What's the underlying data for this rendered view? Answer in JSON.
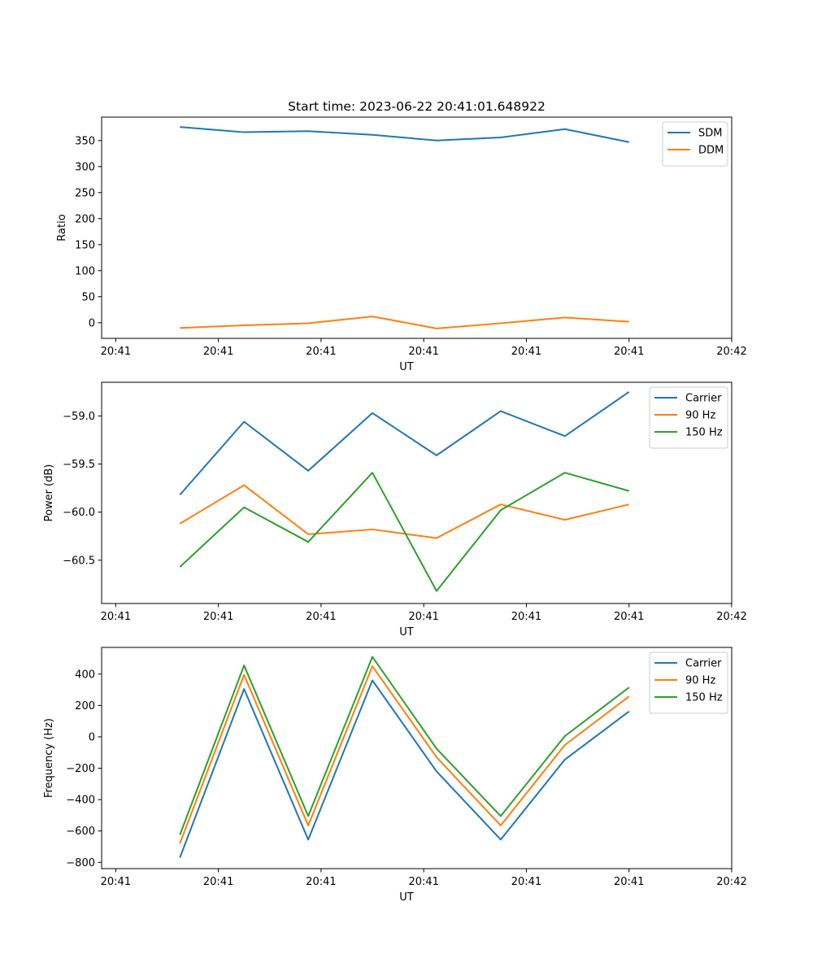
{
  "figure": {
    "title": "Start time: 2023-06-22 20:41:01.648922"
  },
  "colors": {
    "blue": "#1f77b4",
    "orange": "#ff7f0e",
    "green": "#2ca02c"
  },
  "chart_data": [
    {
      "type": "line",
      "title": "Start time: 2023-06-22 20:41:01.648922",
      "xlabel": "UT",
      "ylabel": "Ratio",
      "x": [
        1,
        2,
        3,
        4,
        5,
        6,
        7,
        8
      ],
      "x_ticks": [
        0,
        1.6,
        3.2,
        4.8,
        6.4,
        8,
        9.6
      ],
      "x_tick_labels": [
        "20:41",
        "20:41",
        "20:41",
        "20:41",
        "20:41",
        "20:41",
        "20:42"
      ],
      "xlim": [
        -0.22,
        9.6
      ],
      "ylim": [
        -30,
        395
      ],
      "y_ticks": [
        0,
        50,
        100,
        150,
        200,
        250,
        300,
        350
      ],
      "y_tick_labels": [
        "0",
        "50",
        "100",
        "150",
        "200",
        "250",
        "300",
        "350"
      ],
      "legend_position": "upper right",
      "grid": false,
      "series": [
        {
          "name": "SDM",
          "color": "blue",
          "values": [
            376,
            366,
            368,
            361,
            350,
            356,
            372,
            347
          ]
        },
        {
          "name": "DDM",
          "color": "orange",
          "values": [
            -10,
            -5,
            -1,
            12,
            -11,
            -1,
            10,
            2
          ]
        }
      ]
    },
    {
      "type": "line",
      "title": "",
      "xlabel": "UT",
      "ylabel": "Power (dB)",
      "x": [
        1,
        2,
        3,
        4,
        5,
        6,
        7,
        8
      ],
      "x_ticks": [
        0,
        1.6,
        3.2,
        4.8,
        6.4,
        8,
        9.6
      ],
      "x_tick_labels": [
        "20:41",
        "20:41",
        "20:41",
        "20:41",
        "20:41",
        "20:41",
        "20:42"
      ],
      "xlim": [
        -0.22,
        9.6
      ],
      "ylim": [
        -60.95,
        -58.65
      ],
      "y_ticks": [
        -60.5,
        -60.0,
        -59.5,
        -59.0
      ],
      "y_tick_labels": [
        "−60.5",
        "−60.0",
        "−59.5",
        "−59.0"
      ],
      "legend_position": "upper right",
      "grid": false,
      "series": [
        {
          "name": "Carrier",
          "color": "blue",
          "values": [
            -59.82,
            -59.06,
            -59.57,
            -58.97,
            -59.41,
            -58.95,
            -59.21,
            -58.75
          ]
        },
        {
          "name": "90 Hz",
          "color": "orange",
          "values": [
            -60.12,
            -59.72,
            -60.23,
            -60.18,
            -60.27,
            -59.92,
            -60.08,
            -59.92
          ]
        },
        {
          "name": "150 Hz",
          "color": "green",
          "values": [
            -60.57,
            -59.95,
            -60.31,
            -59.59,
            -60.82,
            -59.98,
            -59.59,
            -59.78
          ]
        }
      ]
    },
    {
      "type": "line",
      "title": "",
      "xlabel": "UT",
      "ylabel": "Frequency (Hz)",
      "x": [
        1,
        2,
        3,
        4,
        5,
        6,
        7,
        8
      ],
      "x_ticks": [
        0,
        1.6,
        3.2,
        4.8,
        6.4,
        8,
        9.6
      ],
      "x_tick_labels": [
        "20:41",
        "20:41",
        "20:41",
        "20:41",
        "20:41",
        "20:41",
        "20:42"
      ],
      "xlim": [
        -0.22,
        9.6
      ],
      "ylim": [
        -840,
        570
      ],
      "y_ticks": [
        -800,
        -600,
        -400,
        -200,
        0,
        200,
        400
      ],
      "y_tick_labels": [
        "−800",
        "−600",
        "−400",
        "−200",
        "0",
        "200",
        "400"
      ],
      "legend_position": "upper right",
      "grid": false,
      "series": [
        {
          "name": "Carrier",
          "color": "blue",
          "values": [
            -770,
            305,
            -655,
            360,
            -220,
            -655,
            -145,
            162
          ]
        },
        {
          "name": "90 Hz",
          "color": "orange",
          "values": [
            -680,
            395,
            -565,
            450,
            -130,
            -565,
            -52,
            258
          ]
        },
        {
          "name": "150 Hz",
          "color": "green",
          "values": [
            -625,
            455,
            -505,
            510,
            -75,
            -505,
            5,
            315
          ]
        }
      ]
    }
  ]
}
